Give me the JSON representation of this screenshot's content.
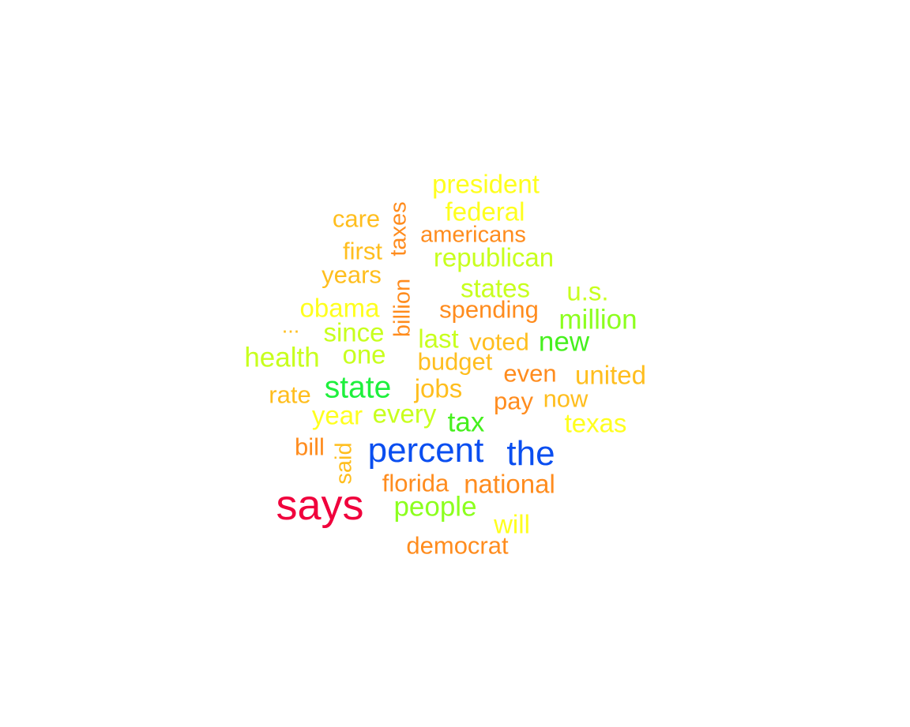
{
  "wordcloud": {
    "words": [
      {
        "text": "says",
        "color": "#f0003c"
      },
      {
        "text": "percent",
        "color": "#0a4ef0"
      },
      {
        "text": "the",
        "color": "#0a4ef0"
      },
      {
        "text": "state",
        "color": "#1ef03c"
      },
      {
        "text": "president",
        "color": "#ffff1e"
      },
      {
        "text": "federal",
        "color": "#ffff1e"
      },
      {
        "text": "americans",
        "color": "#ff8c1e"
      },
      {
        "text": "care",
        "color": "#ffbe1e"
      },
      {
        "text": "taxes",
        "color": "#ff8c1e"
      },
      {
        "text": "first",
        "color": "#ffbe1e"
      },
      {
        "text": "republican",
        "color": "#c8ff1e"
      },
      {
        "text": "years",
        "color": "#ffbe1e"
      },
      {
        "text": "billion",
        "color": "#ff8c1e"
      },
      {
        "text": "states",
        "color": "#c8ff1e"
      },
      {
        "text": "u.s.",
        "color": "#c8ff1e"
      },
      {
        "text": "obama",
        "color": "#ffff1e"
      },
      {
        "text": "spending",
        "color": "#ff8c1e"
      },
      {
        "text": "million",
        "color": "#8cff1e"
      },
      {
        "text": "...",
        "color": "#ffbe1e"
      },
      {
        "text": "since",
        "color": "#c8ff1e"
      },
      {
        "text": "last",
        "color": "#c8ff1e"
      },
      {
        "text": "voted",
        "color": "#ffbe1e"
      },
      {
        "text": "new",
        "color": "#46f01e"
      },
      {
        "text": "health",
        "color": "#c8ff1e"
      },
      {
        "text": "one",
        "color": "#c8ff1e"
      },
      {
        "text": "budget",
        "color": "#ffbe1e"
      },
      {
        "text": "even",
        "color": "#ff8c1e"
      },
      {
        "text": "united",
        "color": "#ffbe1e"
      },
      {
        "text": "rate",
        "color": "#ffbe1e"
      },
      {
        "text": "jobs",
        "color": "#ffbe1e"
      },
      {
        "text": "pay",
        "color": "#ff8c1e"
      },
      {
        "text": "now",
        "color": "#ffbe1e"
      },
      {
        "text": "year",
        "color": "#ffff1e"
      },
      {
        "text": "every",
        "color": "#c8ff1e"
      },
      {
        "text": "tax",
        "color": "#46f01e"
      },
      {
        "text": "texas",
        "color": "#ffff1e"
      },
      {
        "text": "bill",
        "color": "#ff8c1e"
      },
      {
        "text": "said",
        "color": "#ffbe1e"
      },
      {
        "text": "florida",
        "color": "#ff8c1e"
      },
      {
        "text": "national",
        "color": "#ff8c1e"
      },
      {
        "text": "people",
        "color": "#8cff1e"
      },
      {
        "text": "will",
        "color": "#ffff1e"
      },
      {
        "text": "democrat",
        "color": "#ff8c1e"
      }
    ]
  }
}
